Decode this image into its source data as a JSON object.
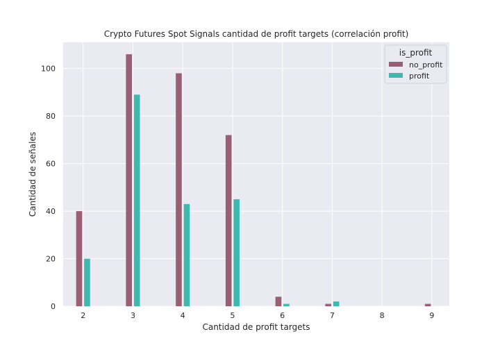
{
  "chart_data": {
    "type": "bar",
    "title": "Crypto Futures Spot Signals cantidad de profit targets (correlación profit)",
    "xlabel": "Cantidad de profit targets",
    "ylabel": "Cantidad de señales",
    "xlim": [
      1.6,
      9.35
    ],
    "ylim": [
      0,
      111
    ],
    "xticks": [
      2,
      3,
      4,
      5,
      6,
      7,
      8,
      9
    ],
    "yticks": [
      0,
      20,
      40,
      60,
      80,
      100
    ],
    "grid": true,
    "legend": {
      "title": "is_profit",
      "position": "top-right"
    },
    "series": [
      {
        "name": "no_profit",
        "color": "#9b5f74",
        "points": [
          {
            "x": 2,
            "y": 40
          },
          {
            "x": 3,
            "y": 106
          },
          {
            "x": 4,
            "y": 98
          },
          {
            "x": 5,
            "y": 72
          },
          {
            "x": 6,
            "y": 4
          },
          {
            "x": 7,
            "y": 1
          },
          {
            "x": 9,
            "y": 1
          }
        ]
      },
      {
        "name": "profit",
        "color": "#3fb8b0",
        "points": [
          {
            "x": 2,
            "y": 20
          },
          {
            "x": 3,
            "y": 89
          },
          {
            "x": 4,
            "y": 43
          },
          {
            "x": 5,
            "y": 45
          },
          {
            "x": 6,
            "y": 1
          },
          {
            "x": 7,
            "y": 2
          }
        ]
      }
    ]
  }
}
